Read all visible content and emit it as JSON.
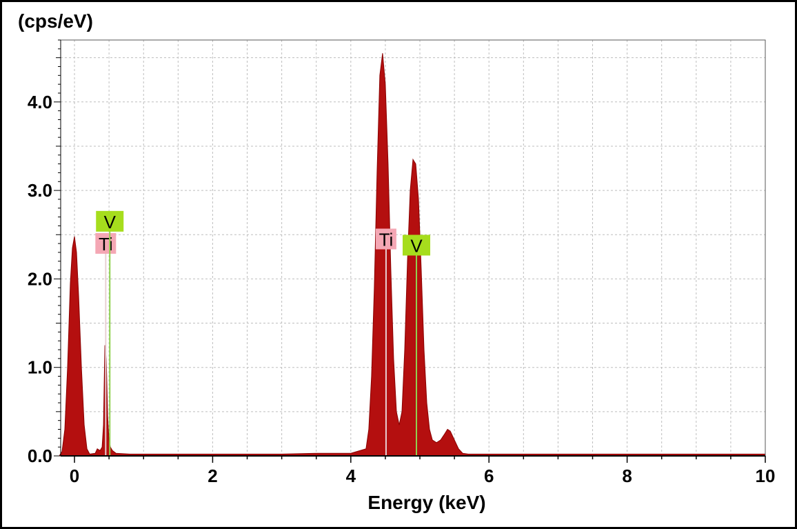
{
  "chart_data": {
    "type": "area",
    "title": "",
    "xlabel": "Energy (keV)",
    "ylabel": "(cps/eV)",
    "xlim": [
      -0.2,
      10
    ],
    "ylim": [
      0,
      4.7
    ],
    "grid": true,
    "x_ticks": [
      0,
      2,
      4,
      6,
      8,
      10
    ],
    "x_tick_labels": [
      "0",
      "2",
      "4",
      "6",
      "8",
      "10"
    ],
    "y_ticks": [
      0,
      1,
      2,
      3,
      4
    ],
    "y_tick_labels": [
      "0.0",
      "1.0",
      "2.0",
      "3.0",
      "4.0"
    ],
    "colors": {
      "spectrum": "#b40f0f",
      "ti_marker": "#f4a7b4",
      "v_marker": "#a6dd1d",
      "v_line": "#8fd14f",
      "grid": "#bdbdbd"
    },
    "series": [
      {
        "x": [
          -0.22,
          -0.18,
          -0.14,
          -0.1,
          -0.06,
          -0.03,
          0.0,
          0.03,
          0.06,
          0.1,
          0.14,
          0.18,
          0.22,
          0.3,
          0.33,
          0.37,
          0.4,
          0.42,
          0.44,
          0.46,
          0.48,
          0.5,
          0.52,
          0.55,
          0.6,
          0.8,
          1.5,
          2.5,
          3.0,
          3.5,
          4.0,
          4.22,
          4.26,
          4.3,
          4.34,
          4.38,
          4.42,
          4.46,
          4.5,
          4.54,
          4.58,
          4.62,
          4.66,
          4.7,
          4.74,
          4.78,
          4.82,
          4.86,
          4.9,
          4.94,
          4.98,
          5.02,
          5.06,
          5.1,
          5.14,
          5.18,
          5.24,
          5.3,
          5.36,
          5.4,
          5.44,
          5.5,
          5.56,
          5.62,
          5.7,
          6.0,
          7.0,
          8.0,
          9.0,
          10.0
        ],
        "y": [
          0.0,
          0.05,
          0.3,
          1.0,
          1.95,
          2.35,
          2.48,
          2.3,
          1.8,
          1.0,
          0.35,
          0.08,
          0.02,
          0.03,
          0.08,
          0.06,
          0.1,
          0.35,
          1.25,
          1.1,
          0.45,
          0.18,
          0.1,
          0.06,
          0.03,
          0.02,
          0.02,
          0.02,
          0.02,
          0.03,
          0.03,
          0.08,
          0.3,
          0.9,
          1.9,
          3.2,
          4.3,
          4.55,
          4.2,
          3.3,
          2.1,
          1.1,
          0.5,
          0.35,
          0.5,
          1.2,
          2.2,
          3.0,
          3.35,
          3.3,
          2.9,
          2.1,
          1.2,
          0.6,
          0.3,
          0.18,
          0.15,
          0.18,
          0.25,
          0.3,
          0.28,
          0.18,
          0.08,
          0.03,
          0.02,
          0.02,
          0.02,
          0.02,
          0.02,
          0.02
        ]
      }
    ],
    "annotations": [
      {
        "label": "Ti",
        "x": 0.452,
        "y": 2.3,
        "color": "ti_marker"
      },
      {
        "label": "V",
        "x": 0.511,
        "y": 2.55,
        "color": "v_marker"
      },
      {
        "label": "Ti",
        "x": 4.51,
        "y": 2.35,
        "color": "ti_marker"
      },
      {
        "label": "V",
        "x": 4.95,
        "y": 2.28,
        "color": "v_marker"
      }
    ]
  }
}
